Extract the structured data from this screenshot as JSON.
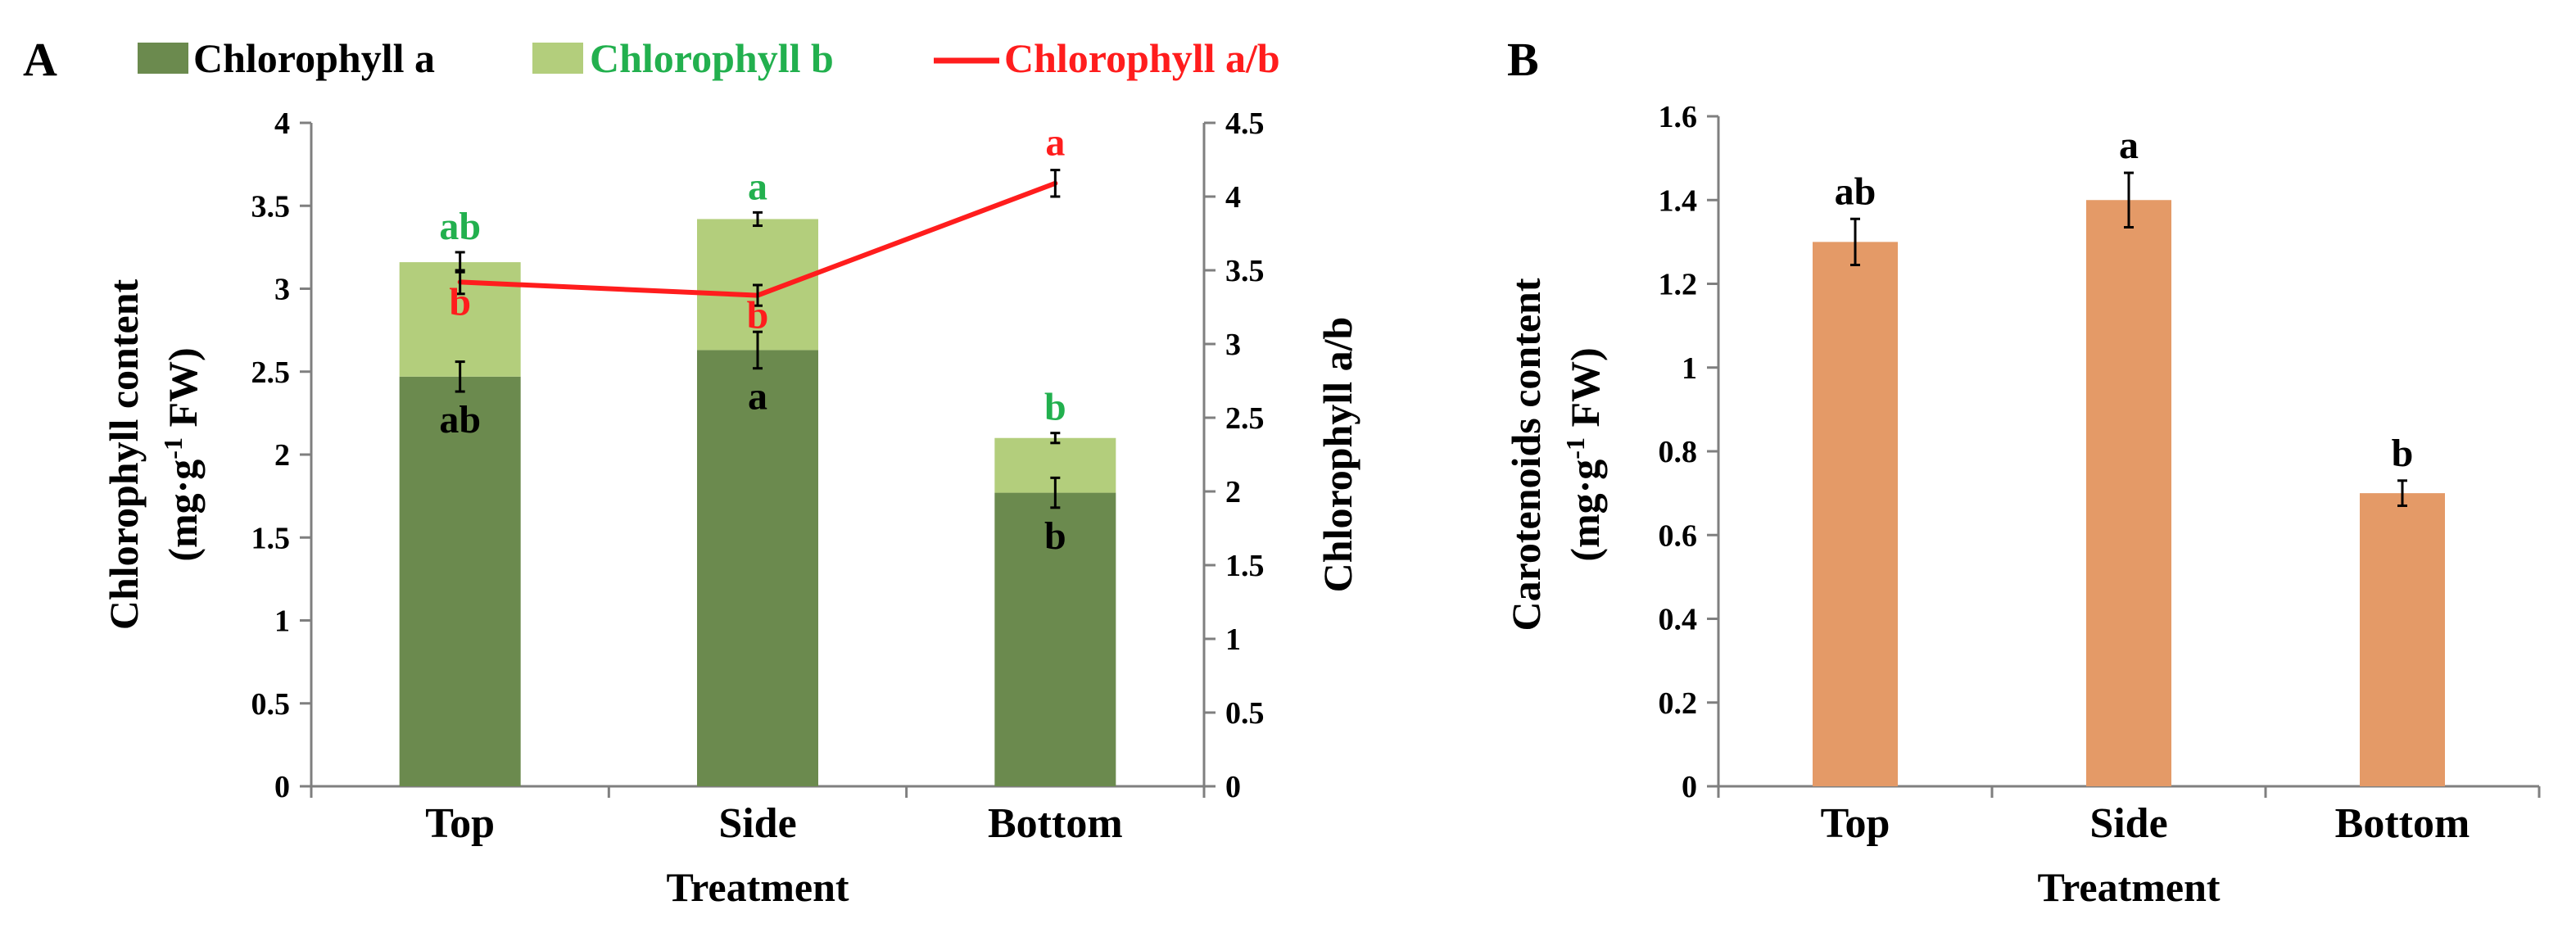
{
  "chart_data": [
    {
      "panel": "A",
      "type": "bar",
      "stacked": true,
      "categories": [
        "Top",
        "Side",
        "Bottom"
      ],
      "xlabel": "Treatment",
      "ylabel_main": "Chlorophyll content",
      "ylabel_unit_prefix": "(mg·g",
      "ylabel_unit_sup": "-1",
      "ylabel_unit_suffix": " FW)",
      "y2label": "Chlorophyll a/b",
      "ylim": [
        0,
        4
      ],
      "y_ticks": [
        0,
        0.5,
        1,
        1.5,
        2,
        2.5,
        3,
        3.5,
        4
      ],
      "y_tick_labels": [
        "0",
        "0.5",
        "1",
        "1.5",
        "2",
        "2.5",
        "3",
        "3.5",
        "4"
      ],
      "y2lim": [
        0,
        4.5
      ],
      "y2_ticks": [
        0,
        0.5,
        1,
        1.5,
        2,
        2.5,
        3,
        3.5,
        4,
        4.5
      ],
      "y2_tick_labels": [
        "0",
        "0.5",
        "1",
        "1.5",
        "2",
        "2.5",
        "3",
        "3.5",
        "4",
        "4.5"
      ],
      "legend": {
        "position": "top",
        "items": [
          {
            "label": "Chlorophyll a",
            "kind": "bar",
            "color": "#6b8a4e",
            "text_color": "#000000"
          },
          {
            "label": "Chlorophyll b",
            "kind": "bar",
            "color": "#b3ce7c",
            "text_color": "#22b04e"
          },
          {
            "label": "Chlorophyll a/b",
            "kind": "line",
            "color": "#ff1d1d",
            "text_color": "#ff1d1d"
          }
        ]
      },
      "series": [
        {
          "name": "Chlorophyll a",
          "axis": "left",
          "values": [
            2.47,
            2.63,
            1.77
          ],
          "errors": [
            0.09,
            0.11,
            0.09
          ],
          "letters": [
            "ab",
            "a",
            "b"
          ],
          "letter_color": "#000000",
          "color": "#6b8a4e"
        },
        {
          "name": "Chlorophyll b",
          "axis": "left",
          "values": [
            0.69,
            0.79,
            0.33
          ],
          "errors": [
            0.06,
            0.04,
            0.03
          ],
          "letters": [
            "ab",
            "a",
            "b"
          ],
          "letter_color": "#22b04e",
          "color": "#b3ce7c"
        },
        {
          "name": "Chlorophyll a/b",
          "axis": "right",
          "type": "line",
          "values": [
            3.42,
            3.33,
            4.09
          ],
          "errors": [
            0.08,
            0.07,
            0.09
          ],
          "letters": [
            "b",
            "b",
            "a"
          ],
          "letter_color": "#ff1d1d",
          "color": "#ff1d1d"
        }
      ]
    },
    {
      "panel": "B",
      "type": "bar",
      "categories": [
        "Top",
        "Side",
        "Bottom"
      ],
      "xlabel": "Treatment",
      "ylabel_main": "Carotenoids content",
      "ylabel_unit_prefix": "(mg·g",
      "ylabel_unit_sup": "-1",
      "ylabel_unit_suffix": " FW)",
      "ylim": [
        0,
        1.6
      ],
      "y_ticks": [
        0,
        0.2,
        0.4,
        0.6,
        0.8,
        1,
        1.2,
        1.4,
        1.6
      ],
      "y_tick_labels": [
        "0",
        "0.2",
        "0.4",
        "0.6",
        "0.8",
        "1",
        "1.2",
        "1.4",
        "1.6"
      ],
      "series": [
        {
          "name": "Carotenoids",
          "values": [
            1.3,
            1.4,
            0.7
          ],
          "errors": [
            0.055,
            0.065,
            0.03
          ],
          "letters": [
            "ab",
            "a",
            "b"
          ],
          "letter_color": "#000000",
          "color": "#e49a67"
        }
      ]
    }
  ]
}
